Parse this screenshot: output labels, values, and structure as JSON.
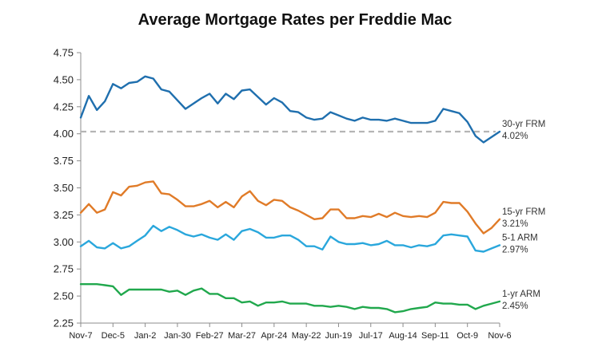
{
  "chart_data": {
    "type": "line",
    "title": "Average Mortgage Rates per Freddie Mac",
    "xlabel": "",
    "ylabel": "",
    "ylim": [
      2.25,
      4.75
    ],
    "y_ticks": [
      "4.75",
      "4.50",
      "4.25",
      "4.00",
      "3.75",
      "3.50",
      "3.25",
      "3.00",
      "2.75",
      "2.50",
      "2.25"
    ],
    "x_ticks": [
      "Nov-7",
      "Dec-5",
      "Jan-2",
      "Jan-30",
      "Feb-27",
      "Mar-27",
      "Apr-24",
      "May-22",
      "Jun-19",
      "Jul-17",
      "Aug-14",
      "Sep-11",
      "Oct-9",
      "Nov-6"
    ],
    "reference_line": {
      "value": 4.02,
      "style": "dashed",
      "color": "#b5b5b5"
    },
    "grid": false,
    "series": [
      {
        "name": "30-yr FRM",
        "end_label": "4.02%",
        "color": "#1f6fae",
        "values": [
          4.15,
          4.35,
          4.22,
          4.3,
          4.46,
          4.42,
          4.47,
          4.48,
          4.53,
          4.51,
          4.41,
          4.39,
          4.31,
          4.23,
          4.28,
          4.33,
          4.37,
          4.28,
          4.37,
          4.32,
          4.4,
          4.41,
          4.34,
          4.27,
          4.33,
          4.29,
          4.21,
          4.2,
          4.15,
          4.13,
          4.14,
          4.2,
          4.17,
          4.14,
          4.12,
          4.15,
          4.13,
          4.13,
          4.12,
          4.14,
          4.12,
          4.1,
          4.1,
          4.1,
          4.12,
          4.23,
          4.21,
          4.19,
          4.11,
          3.98,
          3.92,
          3.97,
          4.02
        ]
      },
      {
        "name": "15-yr FRM",
        "end_label": "3.21%",
        "color": "#e07b28",
        "values": [
          3.27,
          3.35,
          3.27,
          3.3,
          3.46,
          3.43,
          3.51,
          3.52,
          3.55,
          3.56,
          3.45,
          3.44,
          3.39,
          3.33,
          3.33,
          3.35,
          3.38,
          3.32,
          3.37,
          3.32,
          3.42,
          3.47,
          3.38,
          3.34,
          3.39,
          3.38,
          3.32,
          3.29,
          3.25,
          3.21,
          3.22,
          3.3,
          3.3,
          3.22,
          3.22,
          3.24,
          3.23,
          3.26,
          3.23,
          3.27,
          3.24,
          3.23,
          3.24,
          3.23,
          3.27,
          3.37,
          3.36,
          3.36,
          3.28,
          3.17,
          3.08,
          3.13,
          3.21
        ]
      },
      {
        "name": "5-1 ARM",
        "end_label": "2.97%",
        "color": "#2aa7dc",
        "values": [
          2.96,
          3.01,
          2.95,
          2.94,
          2.99,
          2.94,
          2.96,
          3.01,
          3.06,
          3.15,
          3.1,
          3.14,
          3.11,
          3.07,
          3.05,
          3.07,
          3.04,
          3.02,
          3.07,
          3.02,
          3.1,
          3.12,
          3.09,
          3.04,
          3.04,
          3.06,
          3.06,
          3.02,
          2.96,
          2.96,
          2.93,
          3.05,
          3.0,
          2.98,
          2.98,
          2.99,
          2.97,
          2.98,
          3.01,
          2.97,
          2.97,
          2.95,
          2.97,
          2.96,
          2.98,
          3.06,
          3.07,
          3.06,
          3.05,
          2.92,
          2.91,
          2.94,
          2.97
        ]
      },
      {
        "name": "1-yr ARM",
        "end_label": "2.45%",
        "color": "#21a84d",
        "values": [
          2.61,
          2.61,
          2.61,
          2.6,
          2.59,
          2.51,
          2.56,
          2.56,
          2.56,
          2.56,
          2.56,
          2.54,
          2.55,
          2.51,
          2.55,
          2.57,
          2.52,
          2.52,
          2.48,
          2.48,
          2.44,
          2.45,
          2.41,
          2.44,
          2.44,
          2.45,
          2.43,
          2.43,
          2.43,
          2.41,
          2.41,
          2.4,
          2.41,
          2.4,
          2.38,
          2.4,
          2.39,
          2.39,
          2.38,
          2.35,
          2.36,
          2.38,
          2.39,
          2.4,
          2.44,
          2.43,
          2.43,
          2.42,
          2.42,
          2.38,
          2.41,
          2.43,
          2.45
        ]
      }
    ]
  }
}
